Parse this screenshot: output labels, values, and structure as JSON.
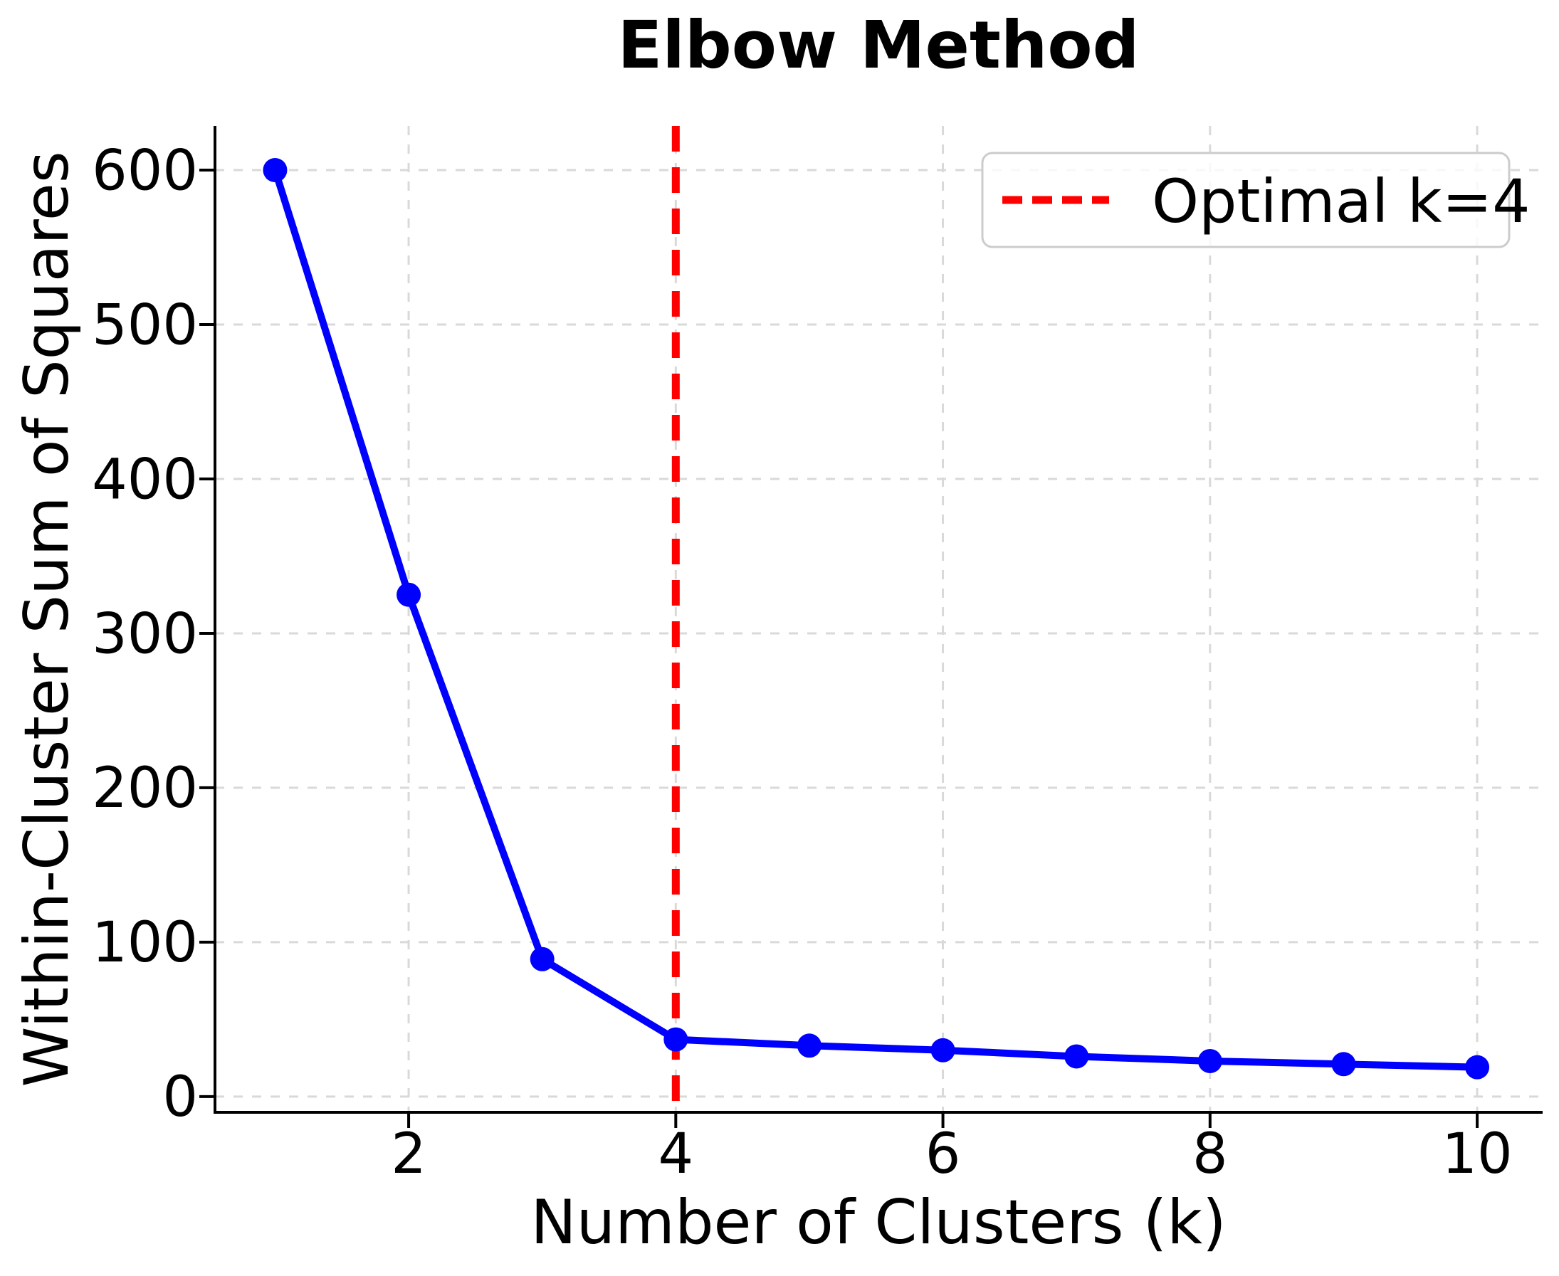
{
  "title": "Elbow Method",
  "chart_data": {
    "type": "line",
    "title": "Elbow Method",
    "xlabel": "Number of Clusters (k)",
    "ylabel": "Within-Cluster Sum of Squares",
    "x": [
      1,
      2,
      3,
      4,
      5,
      6,
      7,
      8,
      9,
      10
    ],
    "values": [
      600,
      325,
      89,
      37,
      33,
      30,
      26,
      23,
      21,
      19
    ],
    "x_ticks": [
      2,
      4,
      6,
      8,
      10
    ],
    "y_ticks": [
      0,
      100,
      200,
      300,
      400,
      500,
      600
    ],
    "xlim": [
      0.55,
      10.49
    ],
    "ylim": [
      -10.2,
      628.6
    ],
    "grid": true,
    "marker": "circle",
    "optimal_k": 4,
    "legend": {
      "label": "Optimal k=4",
      "position": "upper right"
    },
    "colors": {
      "line": "#0000ff",
      "marker": "#0000ff",
      "optimal_line": "#ff0000",
      "grid": "#d9d9d9",
      "spine": "#000000",
      "legend_border": "#cccccc",
      "legend_background": "#ffffff",
      "text": "#000000",
      "background": "#ffffff"
    }
  }
}
